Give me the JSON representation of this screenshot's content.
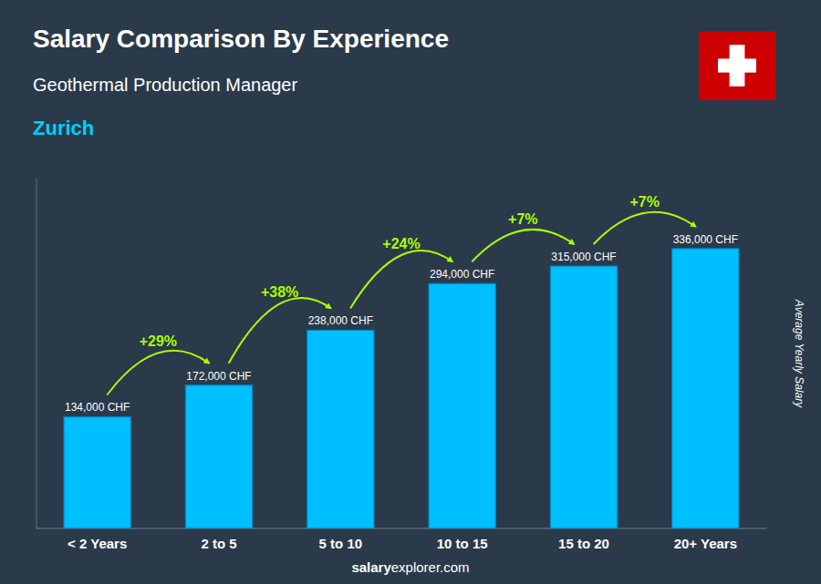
{
  "chart_data": {
    "type": "bar",
    "title": "Salary Comparison By Experience",
    "subtitle": "Geothermal Production Manager",
    "city": {
      "text": "Zurich",
      "color": "#00CFFF"
    },
    "ylabel": "Average Yearly Salary",
    "categories": [
      "< 2 Years",
      "2 to 5",
      "5 to 10",
      "10 to 15",
      "15 to 20",
      "20+ Years"
    ],
    "values": [
      134000,
      172000,
      238000,
      294000,
      315000,
      336000
    ],
    "value_labels": [
      "134,000 CHF",
      "172,000 CHF",
      "238,000 CHF",
      "294,000 CHF",
      "315,000 CHF",
      "336,000 CHF"
    ],
    "data_labels": true,
    "color": "#00BFFF",
    "edge_color": "#007FBF",
    "annotations": {
      "labels": [
        "+29%",
        "+38%",
        "+24%",
        "+7%",
        "+7%"
      ],
      "color": "#AAFF00"
    },
    "ylim": [
      0,
      420000
    ],
    "yticks": [],
    "tick_labels": "x",
    "grid": false,
    "footer": [
      "salary",
      "explorer.com"
    ],
    "background_color": "#2a3a4a",
    "flag": {
      "color": "#CC0000"
    }
  }
}
